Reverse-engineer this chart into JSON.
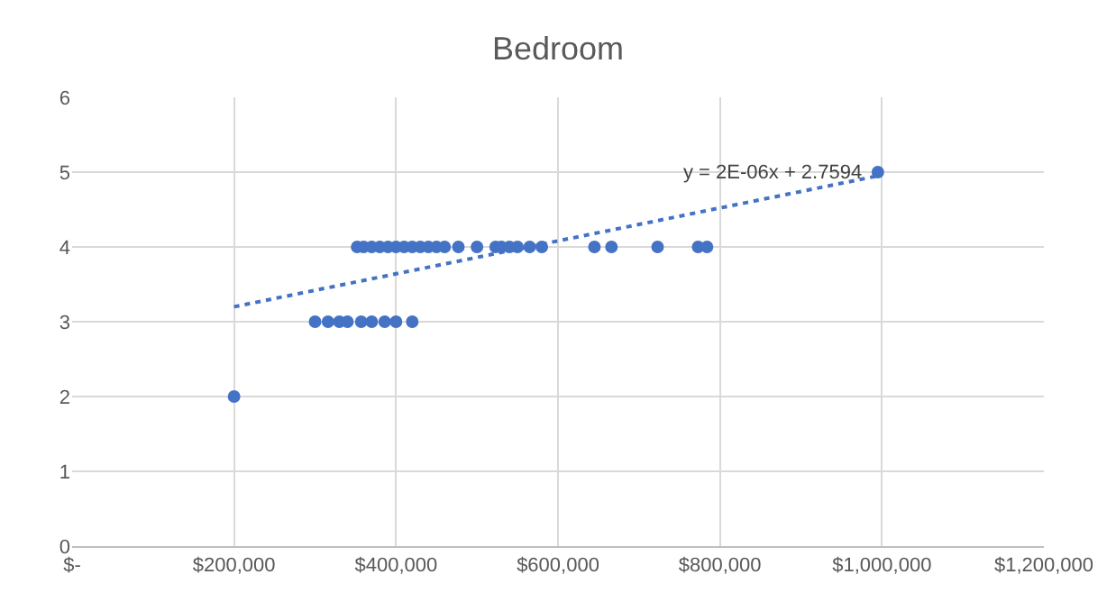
{
  "chart_data": {
    "type": "scatter",
    "title": "Bedroom",
    "marker": "circle",
    "grid": true,
    "xlim": [
      0,
      1200000
    ],
    "xticks": [
      {
        "value": 0,
        "label": "$-"
      },
      {
        "value": 200000,
        "label": "$200,000"
      },
      {
        "value": 400000,
        "label": "$400,000"
      },
      {
        "value": 600000,
        "label": "$600,000"
      },
      {
        "value": 800000,
        "label": "$800,000"
      },
      {
        "value": 1000000,
        "label": "$1,000,000"
      },
      {
        "value": 1200000,
        "label": "$1,200,000"
      }
    ],
    "ylim": [
      0,
      6
    ],
    "yticks": [
      0,
      1,
      2,
      3,
      4,
      5,
      6
    ],
    "series": [
      {
        "color": "#4472c4",
        "x": [
          200000,
          300000,
          316000,
          330000,
          340000,
          357000,
          370000,
          386000,
          400000,
          420000,
          352000,
          360000,
          370000,
          380000,
          390000,
          400000,
          410000,
          420000,
          430000,
          440000,
          450000,
          460000,
          477000,
          500000,
          523000,
          530000,
          540000,
          550000,
          565000,
          580000,
          645000,
          666000,
          723000,
          773000,
          784000,
          995000
        ],
        "values": [
          2,
          3,
          3,
          3,
          3,
          3,
          3,
          3,
          3,
          3,
          4,
          4,
          4,
          4,
          4,
          4,
          4,
          4,
          4,
          4,
          4,
          4,
          4,
          4,
          4,
          4,
          4,
          4,
          4,
          4,
          4,
          4,
          4,
          4,
          4,
          5
        ]
      },
      {
        "type": "line",
        "color": "#4472c4",
        "line_style": "dotted",
        "marker": "none",
        "x": [
          200000,
          995000
        ],
        "values": [
          3.2,
          4.95
        ]
      }
    ],
    "annotations": [
      "y = 2E-06x + 2.7594"
    ]
  }
}
